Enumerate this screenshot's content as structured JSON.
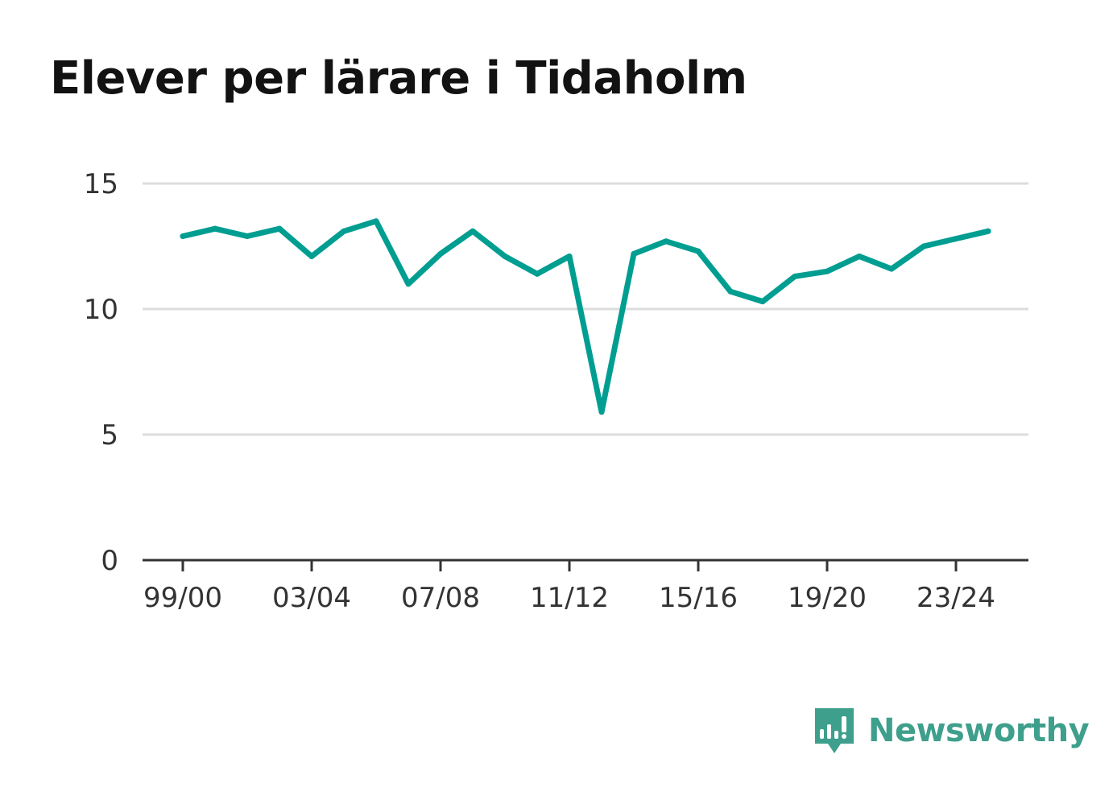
{
  "title": "Elever per lärare i Tidaholm",
  "brand": {
    "name": "Newsworthy",
    "icon": "newsworthy-logo-icon",
    "color": "#3e9f8c"
  },
  "chart_data": {
    "type": "line",
    "title": "Elever per lärare i Tidaholm",
    "xlabel": "",
    "ylabel": "",
    "categories": [
      "99/00",
      "00/01",
      "01/02",
      "02/03",
      "03/04",
      "04/05",
      "05/06",
      "06/07",
      "07/08",
      "08/09",
      "09/10",
      "10/11",
      "11/12",
      "12/13",
      "13/14",
      "14/15",
      "15/16",
      "16/17",
      "17/18",
      "18/19",
      "19/20",
      "20/21",
      "21/22",
      "22/23",
      "23/24",
      "24/25"
    ],
    "x_tick_labels": [
      "99/00",
      "03/04",
      "07/08",
      "11/12",
      "15/16",
      "19/20",
      "23/24"
    ],
    "y_ticks": [
      "0",
      "5",
      "10",
      "15"
    ],
    "ylim": [
      0,
      15
    ],
    "grid": true,
    "series": [
      {
        "color": "#009e91",
        "values": [
          12.9,
          13.2,
          12.9,
          13.2,
          12.1,
          13.1,
          13.5,
          11.0,
          12.2,
          13.1,
          12.1,
          11.4,
          12.1,
          5.9,
          12.2,
          12.7,
          12.3,
          10.7,
          10.3,
          11.3,
          11.5,
          12.1,
          11.6,
          12.5,
          12.8,
          13.1
        ]
      }
    ],
    "colors": {
      "line": "#009e91",
      "grid": "#dcdcdc",
      "axis": "#333333"
    }
  }
}
